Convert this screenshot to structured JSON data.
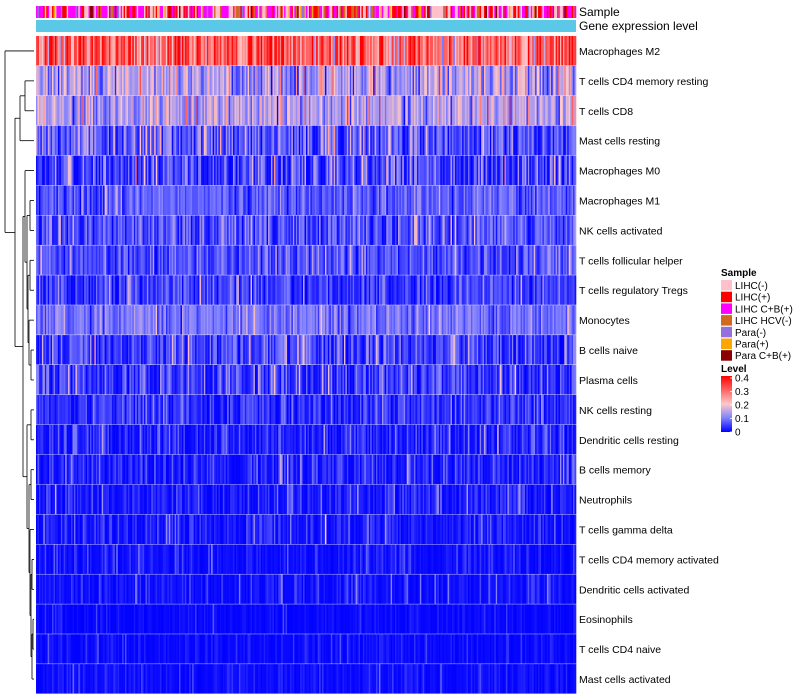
{
  "chart_data": {
    "type": "heatmap",
    "title": "",
    "annotation_tracks": [
      "Sample",
      "Gene expression level"
    ],
    "rows": [
      {
        "label": "Macrophages M2",
        "mean": 0.3,
        "spread": 0.1
      },
      {
        "label": "T cells CD4 memory resting",
        "mean": 0.13,
        "spread": 0.07
      },
      {
        "label": "T cells CD8",
        "mean": 0.14,
        "spread": 0.06
      },
      {
        "label": "Mast cells resting",
        "mean": 0.07,
        "spread": 0.06
      },
      {
        "label": "Macrophages M0",
        "mean": 0.05,
        "spread": 0.07
      },
      {
        "label": "Macrophages M1",
        "mean": 0.07,
        "spread": 0.035
      },
      {
        "label": "NK cells activated",
        "mean": 0.06,
        "spread": 0.05
      },
      {
        "label": "T cells follicular helper",
        "mean": 0.06,
        "spread": 0.04
      },
      {
        "label": "T cells regulatory  Tregs",
        "mean": 0.045,
        "spread": 0.04
      },
      {
        "label": "Monocytes",
        "mean": 0.09,
        "spread": 0.04
      },
      {
        "label": "B cells naive",
        "mean": 0.05,
        "spread": 0.05
      },
      {
        "label": "Plasma cells",
        "mean": 0.04,
        "spread": 0.05
      },
      {
        "label": "NK cells resting",
        "mean": 0.035,
        "spread": 0.04
      },
      {
        "label": "Dendritic cells resting",
        "mean": 0.025,
        "spread": 0.04
      },
      {
        "label": "B cells memory",
        "mean": 0.02,
        "spread": 0.04
      },
      {
        "label": "Neutrophils",
        "mean": 0.018,
        "spread": 0.035
      },
      {
        "label": "T cells gamma delta",
        "mean": 0.01,
        "spread": 0.04
      },
      {
        "label": "T cells CD4 memory activated",
        "mean": 0.006,
        "spread": 0.03
      },
      {
        "label": "Dendritic cells activated",
        "mean": 0.006,
        "spread": 0.03
      },
      {
        "label": "Eosinophils",
        "mean": 0.002,
        "spread": 0.015
      },
      {
        "label": "T cells CD4 naive",
        "mean": 0.002,
        "spread": 0.02
      },
      {
        "label": "Mast cells activated",
        "mean": 0.003,
        "spread": 0.025
      }
    ],
    "n_samples": 370,
    "color_scale": {
      "stops": [
        0,
        0.1,
        0.2,
        0.3,
        0.4
      ],
      "colors": [
        "#0000ff",
        "#8080ff",
        "#ffc8c8",
        "#ff6464",
        "#ff0000"
      ]
    },
    "legend": {
      "sample_title": "Sample",
      "sample_entries": [
        {
          "label": "LIHC(-)",
          "color": "#ffc0cb"
        },
        {
          "label": "LIHC(+)",
          "color": "#ff0000"
        },
        {
          "label": "LIHC C+B(+)",
          "color": "#ff00ff"
        },
        {
          "label": "LIHC HCV(-)",
          "color": "#d2691e"
        },
        {
          "label": "Para(-)",
          "color": "#9370db"
        },
        {
          "label": "Para(+)",
          "color": "#ffa500"
        },
        {
          "label": "Para C+B(+)",
          "color": "#8b0000"
        }
      ],
      "level_title": "Level",
      "level_ticks": [
        "0.4",
        "0.3",
        "0.2",
        "0.1",
        "0"
      ],
      "position": "right"
    },
    "gene_expression_color": "#5bc8e8"
  }
}
